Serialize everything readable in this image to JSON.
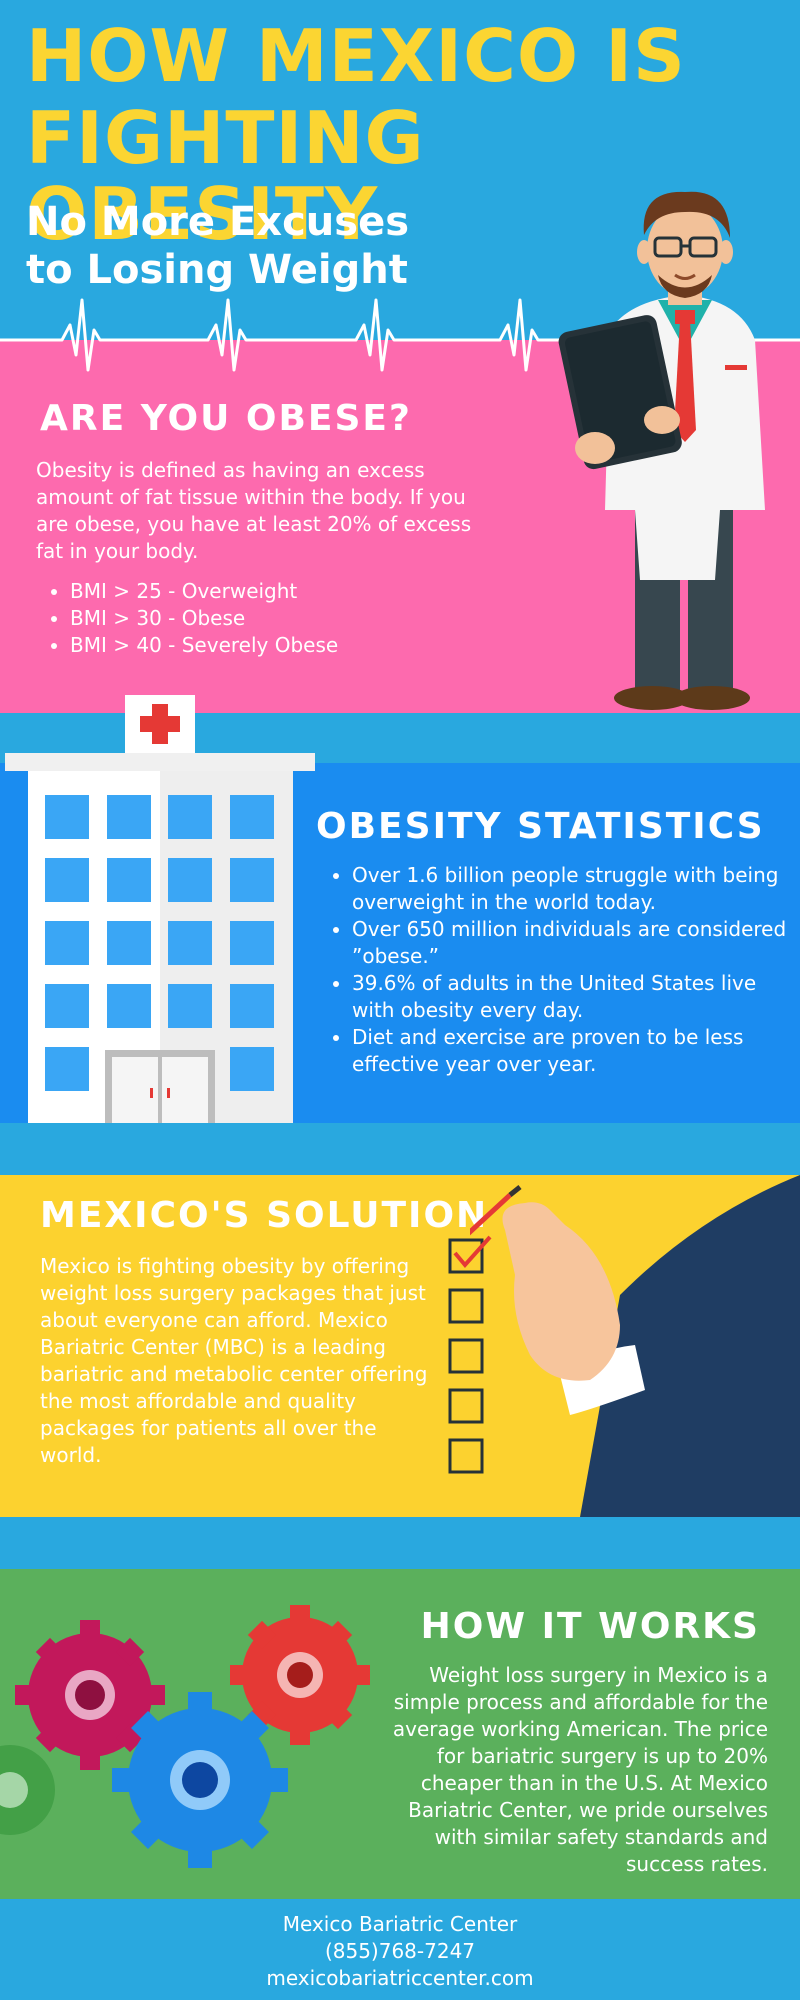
{
  "colors": {
    "top_bg": "#29a8df",
    "title_yellow": "#fbd532",
    "pink": "#fd6aae",
    "blue": "#1a8cf0",
    "yellow": "#fcd22f",
    "green": "#5bb05c"
  },
  "header": {
    "title_line1": "HOW MEXICO IS",
    "title_line2": "FIGHTING OBESITY",
    "subtitle_line1": "No More Excuses",
    "subtitle_line2": "to Losing Weight"
  },
  "obese": {
    "title": "ARE YOU OBESE?",
    "paragraph": "Obesity is defined as having an excess amount of fat tissue within the body. If you are obese, you have at least 20% of excess fat in your body.",
    "bmi": [
      "BMI > 25 - Overweight",
      "BMI > 30 - Obese",
      "BMI > 40 - Severely Obese"
    ]
  },
  "stats": {
    "title": "OBESITY STATISTICS",
    "items": [
      "Over 1.6 billion people struggle with being overweight in the world today.",
      "Over 650 million individuals are considered ”obese.”",
      "39.6% of adults in the United States live with obesity every day.",
      "Diet and exercise are proven to be less effective year over year."
    ]
  },
  "solution": {
    "title": "MEXICO'S SOLUTION",
    "paragraph": "Mexico is fighting obesity by offering weight loss surgery packages that just about everyone can afford. Mexico Bariatric Center (MBC) is a leading bariatric and metabolic center offering the most affordable and quality packages for patients all over the world."
  },
  "works": {
    "title": "HOW IT WORKS",
    "paragraph": "Weight loss surgery in Mexico is a simple process and affordable for the average working American. The price for bariatric surgery is up to 20% cheaper than in the U.S. At Mexico Bariatric Center, we pride ourselves with similar safety standards and success rates."
  },
  "footer": {
    "name": "Mexico Bariatric Center",
    "phone": "(855)768-7247",
    "website": "mexicobariatriccenter.com"
  },
  "icons": [
    "doctor-icon",
    "hospital-icon",
    "checklist-icon",
    "hand-icon",
    "gears-icon",
    "heartbeat-icon"
  ]
}
